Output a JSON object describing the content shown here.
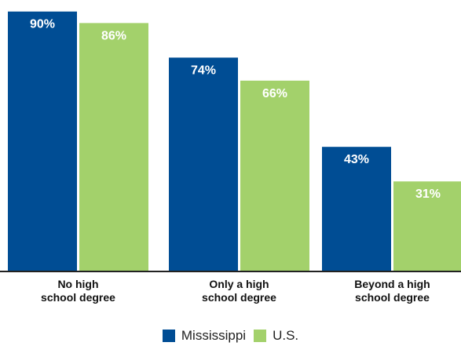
{
  "chart_data": {
    "type": "bar",
    "categories": [
      "No high\nschool degree",
      "Only a high\nschool degree",
      "Beyond a high\nschool degree"
    ],
    "series": [
      {
        "name": "Mississippi",
        "values": [
          90,
          74,
          43
        ],
        "labels": [
          "90%",
          "74%",
          "43%"
        ],
        "color": "#004d94"
      },
      {
        "name": "U.S.",
        "values": [
          86,
          66,
          31
        ],
        "labels": [
          "86%",
          "66%",
          "31%"
        ],
        "color": "#a3d16b"
      }
    ],
    "ylim": [
      0,
      100
    ],
    "legend": "bottom-center",
    "grid": false
  }
}
